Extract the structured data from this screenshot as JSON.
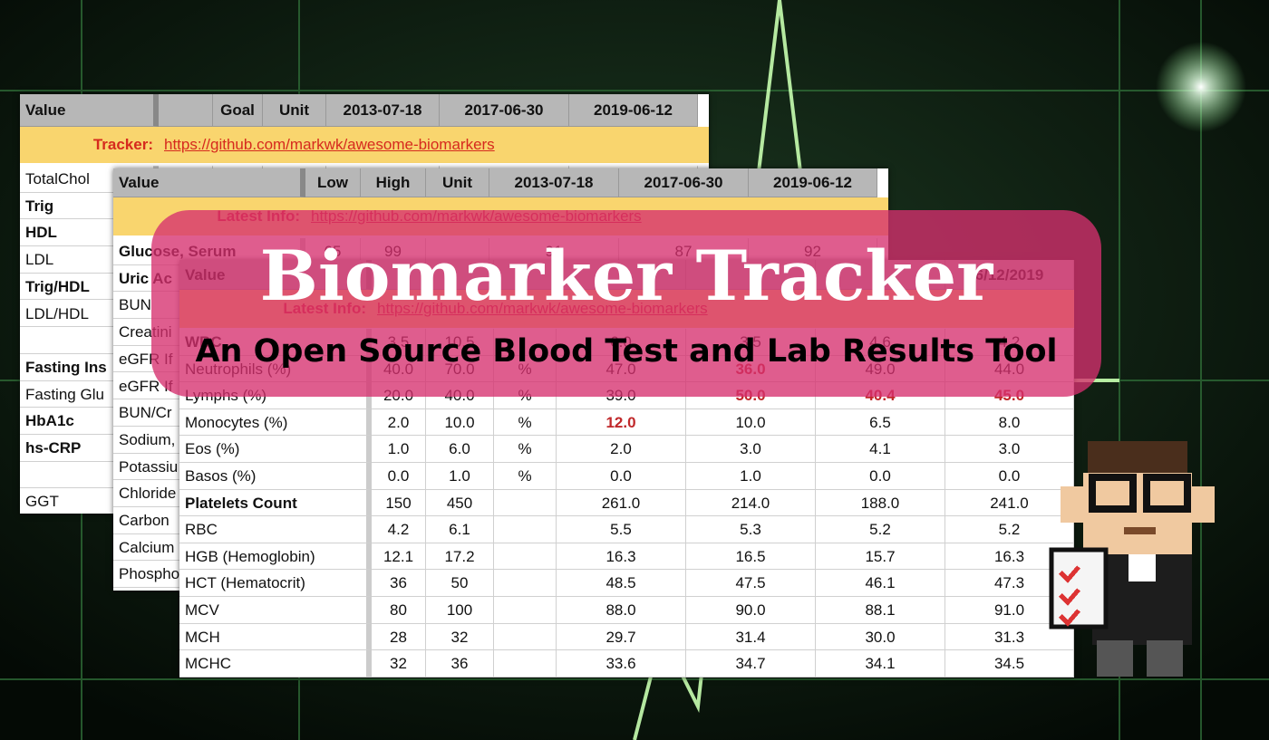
{
  "title": "Biomarker Tracker",
  "subtitle": "An Open Source Blood Test and Lab Results Tool",
  "sheets": [
    {
      "header": [
        "Value",
        null,
        "Goal",
        "Unit",
        "2013-07-18",
        "2017-06-30",
        "2019-06-12"
      ],
      "info_label": "Tracker:",
      "info_link": "https://github.com/markwk/awesome-biomarkers",
      "rows": [
        [
          "TotalChol"
        ],
        [
          "Trig"
        ],
        [
          "HDL"
        ],
        [
          "LDL"
        ],
        [
          "Trig/HDL"
        ],
        [
          "LDL/HDL"
        ],
        [
          null
        ],
        [
          "Fasting Ins"
        ],
        [
          "Fasting Glu"
        ],
        [
          "HbA1c"
        ],
        [
          "hs-CRP"
        ],
        [
          null
        ],
        [
          "GGT"
        ]
      ]
    },
    {
      "header": [
        "Value",
        "Low",
        "High",
        "Unit",
        "2013-07-18",
        "2017-06-30",
        "2019-06-12"
      ],
      "info_label": "Latest Info:",
      "info_link": "https://github.com/markwk/awesome-biomarkers",
      "rows": [
        [
          "Glucose, Serum",
          "65",
          "99",
          null,
          "91",
          "87",
          "92"
        ],
        [
          "Uric Ac"
        ],
        [
          "BUN"
        ],
        [
          "Creatini"
        ],
        [
          "eGFR If"
        ],
        [
          "eGFR If"
        ],
        [
          "BUN/Cr"
        ],
        [
          "Sodium,"
        ],
        [
          "Potassiu"
        ],
        [
          "Chloride"
        ],
        [
          "Carbon"
        ],
        [
          "Calcium"
        ],
        [
          "Phospho"
        ]
      ]
    },
    {
      "header": [
        "Value",
        null,
        null,
        null,
        null,
        null,
        null,
        "6/12/2019"
      ],
      "info_label": "Latest Info:",
      "info_link": "https://github.com/markwk/awesome-biomarkers",
      "rows": [
        [
          "WBC",
          "3.5",
          "10.5",
          null,
          "6.0",
          "3.5",
          "4.6",
          "4.2"
        ],
        [
          "Neutrophils (%)",
          "40.0",
          "70.0",
          "%",
          "47.0",
          "36.0",
          "49.0",
          "44.0"
        ],
        [
          "Lymphs (%)",
          "20.0",
          "40.0",
          "%",
          "39.0",
          "50.0",
          "40.4",
          "45.0"
        ],
        [
          "Monocytes (%)",
          "2.0",
          "10.0",
          "%",
          "12.0",
          "10.0",
          "6.5",
          "8.0"
        ],
        [
          "Eos (%)",
          "1.0",
          "6.0",
          "%",
          "2.0",
          "3.0",
          "4.1",
          "3.0"
        ],
        [
          "Basos (%)",
          "0.0",
          "1.0",
          "%",
          "0.0",
          "1.0",
          "0.0",
          "0.0"
        ],
        [
          "Platelets Count",
          "150",
          "450",
          null,
          "261.0",
          "214.0",
          "188.0",
          "241.0"
        ],
        [
          "RBC",
          "4.2",
          "6.1",
          null,
          "5.5",
          "5.3",
          "5.2",
          "5.2"
        ],
        [
          "HGB (Hemoglobin)",
          "12.1",
          "17.2",
          null,
          "16.3",
          "16.5",
          "15.7",
          "16.3"
        ],
        [
          "HCT (Hematocrit)",
          "36",
          "50",
          null,
          "48.5",
          "47.5",
          "46.1",
          "47.3"
        ],
        [
          "MCV",
          "80",
          "100",
          null,
          "88.0",
          "90.0",
          "88.1",
          "91.0"
        ],
        [
          "MCH",
          "28",
          "32",
          null,
          "29.7",
          "31.4",
          "30.0",
          "31.3"
        ],
        [
          "MCHC",
          "32",
          "36",
          null,
          "33.6",
          "34.7",
          "34.1",
          "34.5"
        ]
      ]
    }
  ]
}
